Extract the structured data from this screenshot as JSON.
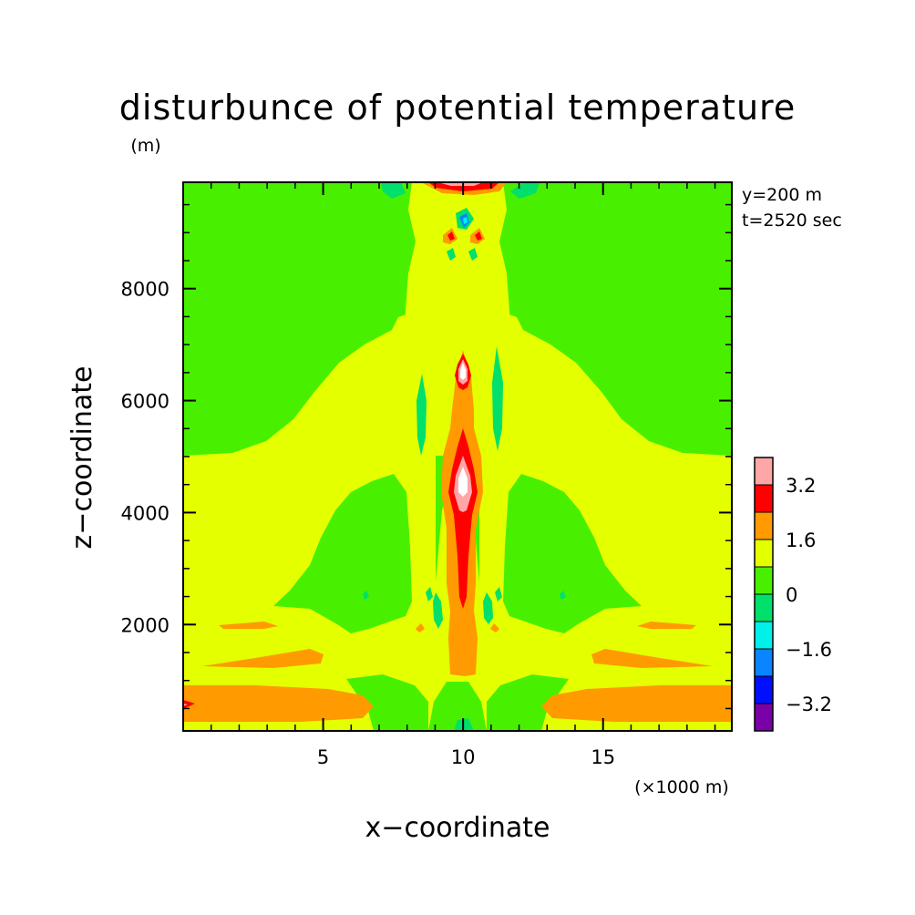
{
  "chart_data": {
    "type": "heatmap",
    "title": "disturbunce of potential temperature",
    "ylabel_unit": "(m)",
    "xlabel": "x−coordinate",
    "ylabel": "z−coordinate",
    "x_unit": "(×1000 m)",
    "info": [
      "y=200 m",
      "t=2520 sec"
    ],
    "xlim": [
      0,
      19.6
    ],
    "ylim": [
      100,
      9900
    ],
    "x_ticks": [
      5,
      10,
      15
    ],
    "y_ticks": [
      2000,
      4000,
      6000,
      8000
    ],
    "x_tick_labels": [
      "5",
      "10",
      "15"
    ],
    "y_tick_labels": [
      "2000",
      "4000",
      "6000",
      "8000"
    ],
    "contour_levels": [
      -4.0,
      -3.2,
      -2.4,
      -1.6,
      -0.8,
      0,
      0.8,
      1.6,
      2.4,
      3.2,
      4.0
    ],
    "colorbar_labels": [
      "3.2",
      "1.6",
      "0",
      "−1.6",
      "−3.2"
    ],
    "colorbar_label_values": [
      3.2,
      1.6,
      0,
      -1.6,
      -3.2
    ],
    "colors": [
      "#7a00a8",
      "#0010ff",
      "#0a84ff",
      "#00f0ea",
      "#00e06a",
      "#48f000",
      "#e4ff00",
      "#ff9a00",
      "#ff0000",
      "#ffa6a6"
    ],
    "line_color": "#000000",
    "background": "#ffffff"
  }
}
